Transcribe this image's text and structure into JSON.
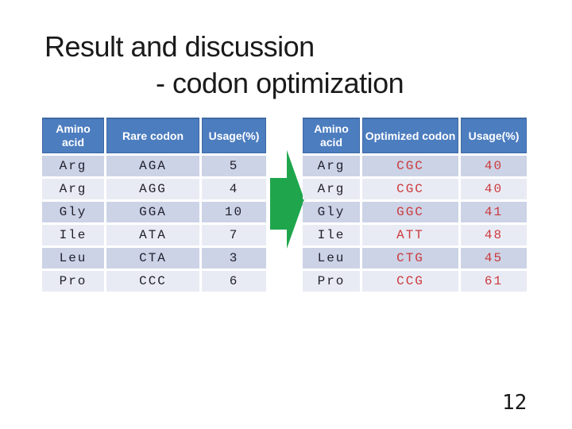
{
  "slide": {
    "title_line1": "Result and discussion",
    "title_line2": "- codon optimization",
    "page_number": "12"
  },
  "colors": {
    "header_bg": "#4c7dbf",
    "header_border": "#3e68a4",
    "header_text": "#ffffff",
    "row_odd": "#ccd3e6",
    "row_even": "#e9ebf4",
    "body_text": "#20202e",
    "codon_red": "#cb3a3d",
    "arrow_green": "#1fa64c"
  },
  "left_table": {
    "title": "Rare codons",
    "headers": [
      "Amino acid",
      "Rare codon",
      "Usage(%)"
    ],
    "rows": [
      {
        "amino_acid": "Arg",
        "codon": "AGA",
        "usage": "5"
      },
      {
        "amino_acid": "Arg",
        "codon": "AGG",
        "usage": "4"
      },
      {
        "amino_acid": "Gly",
        "codon": "GGA",
        "usage": "10"
      },
      {
        "amino_acid": "Ile",
        "codon": "ATA",
        "usage": "7"
      },
      {
        "amino_acid": "Leu",
        "codon": "CTA",
        "usage": "3"
      },
      {
        "amino_acid": "Pro",
        "codon": "CCC",
        "usage": "6"
      }
    ]
  },
  "right_table": {
    "title": "Optimized codons",
    "headers": [
      "Amino acid",
      "Optimized codon",
      "Usage(%)"
    ],
    "rows": [
      {
        "amino_acid": "Arg",
        "codon": "CGC",
        "usage": "40"
      },
      {
        "amino_acid": "Arg",
        "codon": "CGC",
        "usage": "40"
      },
      {
        "amino_acid": "Gly",
        "codon": "GGC",
        "usage": "41"
      },
      {
        "amino_acid": "Ile",
        "codon": "ATT",
        "usage": "48"
      },
      {
        "amino_acid": "Leu",
        "codon": "CTG",
        "usage": "45"
      },
      {
        "amino_acid": "Pro",
        "codon": "CCG",
        "usage": "61"
      }
    ]
  },
  "arrow": {
    "direction": "right"
  }
}
